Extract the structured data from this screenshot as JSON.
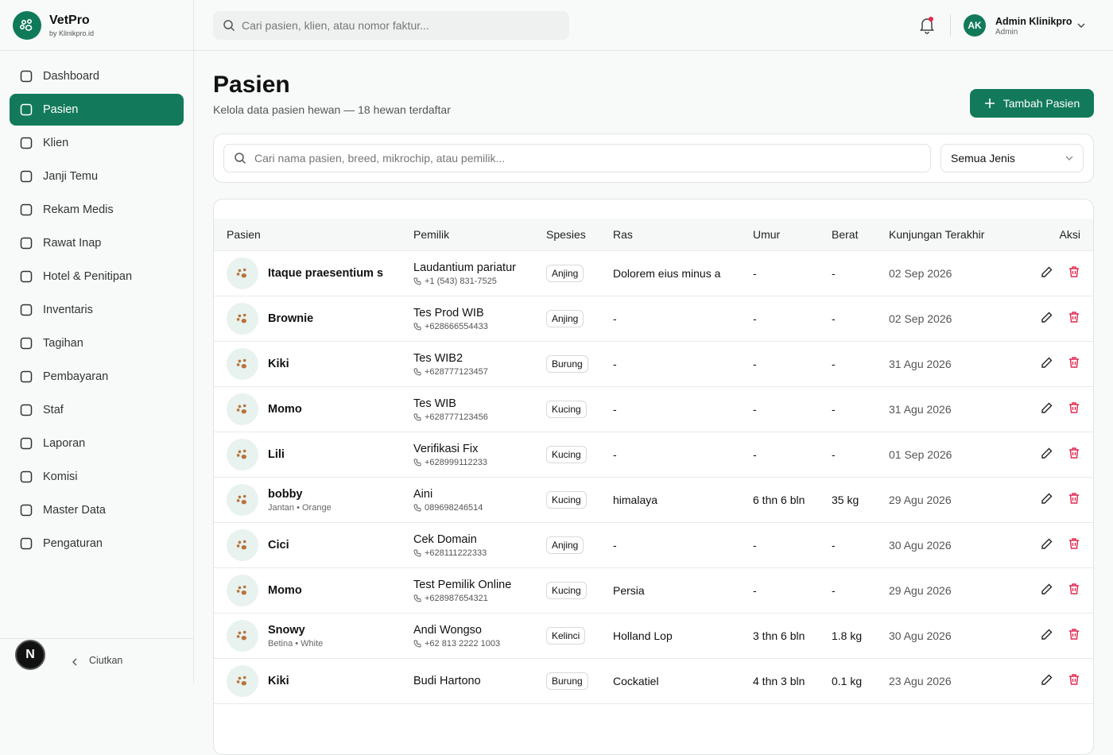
{
  "brand": {
    "name": "VetPro",
    "sub": "by Klinikpro.id"
  },
  "topbar": {
    "search": "Cari pasien, klien, atau nomor faktur...",
    "user": {
      "initials": "AK",
      "name": "Admin Klinikpro",
      "role": "Admin"
    }
  },
  "nav": [
    "Dashboard",
    "Pasien",
    "Klien",
    "Janji Temu",
    "Rekam Medis",
    "Rawat Inap",
    "Hotel & Penitipan",
    "Inventaris",
    "Tagihan",
    "Pembayaran",
    "Staf",
    "Laporan",
    "Komisi",
    "Master Data",
    "Pengaturan"
  ],
  "sidebar_footer": {
    "badge": "N",
    "collapse": "Ciutkan"
  },
  "page": {
    "title": "Pasien",
    "subtitle": "Kelola data pasien hewan — 18 hewan terdaftar",
    "add_button": "Tambah Pasien"
  },
  "filter": {
    "search": "Cari nama pasien, breed, mikrochip, atau pemilik...",
    "species": "Semua Jenis"
  },
  "table": {
    "columns": [
      "Pasien",
      "Pemilik",
      "Spesies",
      "Ras",
      "Umur",
      "Berat",
      "Kunjungan Terakhir",
      "Aksi"
    ],
    "rows": [
      {
        "name": "Itaque praesentium s",
        "owner": "Laudantium pariatur",
        "phone": "+1 (543) 831-7525",
        "species": "Anjing",
        "breed": "Dolorem eius minus a",
        "age": "-",
        "weight": "-",
        "last_visit": "02 Sep 2026"
      },
      {
        "name": "Brownie",
        "owner": "Tes Prod WIB",
        "phone": "+628666554433",
        "species": "Anjing",
        "breed": "-",
        "age": "-",
        "weight": "-",
        "last_visit": "02 Sep 2026"
      },
      {
        "name": "Kiki",
        "owner": "Tes WIB2",
        "phone": "+628777123457",
        "species": "Burung",
        "breed": "-",
        "age": "-",
        "weight": "-",
        "last_visit": "31 Agu 2026"
      },
      {
        "name": "Momo",
        "owner": "Tes WIB",
        "phone": "+628777123456",
        "species": "Kucing",
        "breed": "-",
        "age": "-",
        "weight": "-",
        "last_visit": "31 Agu 2026"
      },
      {
        "name": "Lili",
        "owner": "Verifikasi Fix",
        "phone": "+628999112233",
        "species": "Kucing",
        "breed": "-",
        "age": "-",
        "weight": "-",
        "last_visit": "01 Sep 2026"
      },
      {
        "name": "bobby",
        "detail": "Jantan • Orange",
        "owner": "Aini",
        "phone": "089698246514",
        "species": "Kucing",
        "breed": "himalaya",
        "age": "6 thn 6 bln",
        "weight": "35 kg",
        "last_visit": "29 Agu 2026"
      },
      {
        "name": "Cici",
        "owner": "Cek Domain",
        "phone": "+628111222333",
        "species": "Anjing",
        "breed": "-",
        "age": "-",
        "weight": "-",
        "last_visit": "30 Agu 2026"
      },
      {
        "name": "Momo",
        "owner": "Test Pemilik Online",
        "phone": "+628987654321",
        "species": "Kucing",
        "breed": "Persia",
        "age": "-",
        "weight": "-",
        "last_visit": "29 Agu 2026"
      },
      {
        "name": "Snowy",
        "detail": "Betina • White",
        "owner": "Andi Wongso",
        "phone": "+62 813 2222 1003",
        "species": "Kelinci",
        "breed": "Holland Lop",
        "age": "3 thn 6 bln",
        "weight": "1.8 kg",
        "last_visit": "30 Agu 2026"
      },
      {
        "name": "Kiki",
        "owner": "Budi Hartono",
        "phone": "",
        "species": "Burung",
        "breed": "Cockatiel",
        "age": "4 thn 3 bln",
        "weight": "0.1 kg",
        "last_visit": "23 Agu 2026"
      }
    ]
  }
}
